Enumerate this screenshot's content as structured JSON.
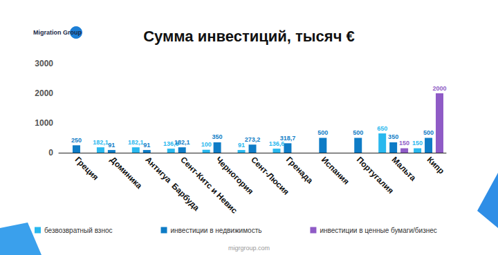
{
  "chart_data": {
    "type": "bar",
    "title": "Сумма инвестиций, тысяч €",
    "annotations": [
      "Migration Group",
      "migrgroup.com"
    ],
    "categories": [
      "Греция",
      "Доминика",
      "Антигуа  Барбуда",
      "Сент-Китс и Невис",
      "Черногория",
      "Сент-Люсия",
      "Гренада",
      "Испания",
      "Португалия",
      "Мальта",
      "Кипр"
    ],
    "series": [
      {
        "name": "безвозвратный взнос",
        "color": "#29b8ee",
        "values": [
          null,
          182.1,
          182.1,
          136.6,
          100,
          91,
          136.6,
          null,
          null,
          650,
          150
        ],
        "value_labels": [
          null,
          "182,1",
          "182,1",
          "136,6",
          "100",
          "91",
          "136,6",
          null,
          null,
          "650",
          "150"
        ]
      },
      {
        "name": "инвестиции в недвижимость",
        "color": "#0e7cc6",
        "values": [
          250,
          91,
          91,
          182.1,
          350,
          273.2,
          318.7,
          500,
          500,
          350,
          500
        ],
        "value_labels": [
          "250",
          "91",
          "91",
          "182,1",
          "350",
          "273,2",
          "318,7",
          "500",
          "500",
          "350",
          "500"
        ]
      },
      {
        "name": "инвестиции в ценные бумаги/бизнес",
        "color": "#8f5bc6",
        "values": [
          null,
          null,
          null,
          null,
          null,
          null,
          null,
          null,
          null,
          150,
          2000
        ],
        "value_labels": [
          null,
          null,
          null,
          null,
          null,
          null,
          null,
          null,
          null,
          "150",
          "2000"
        ]
      }
    ],
    "ylim": [
      0,
      3000
    ],
    "yticks": [
      0,
      1000,
      2000,
      3000
    ],
    "grid": false,
    "legend": "bottom",
    "data_labels": true
  }
}
